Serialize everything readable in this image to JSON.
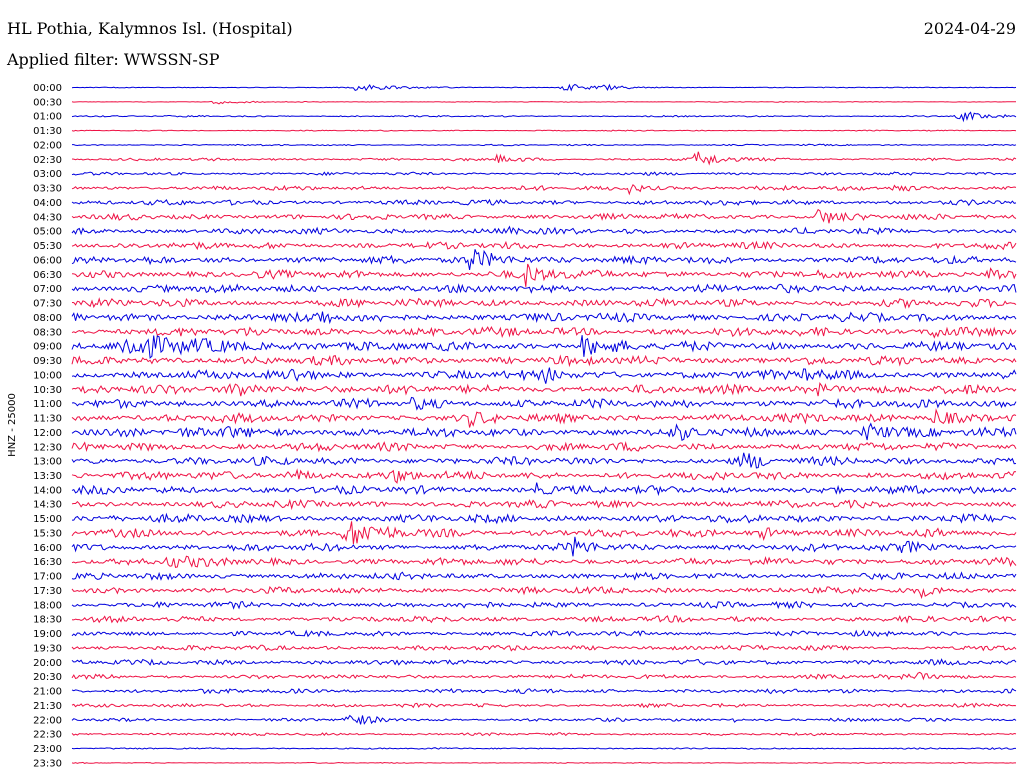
{
  "header": {
    "station": "HL Pothia, Kalymnos Isl. (Hospital)",
    "date": "2024-04-29",
    "filter": "Applied filter: WWSSN-SP"
  },
  "chart_data": {
    "type": "line",
    "title": "HL Pothia, Kalymnos Isl. (Hospital)",
    "subtitle": "Applied filter: WWSSN-SP",
    "ylabel": "HNZ - 25000",
    "xlabel": "",
    "row_interval_minutes": 30,
    "row_labels": [
      "00:00",
      "00:30",
      "01:00",
      "01:30",
      "02:00",
      "02:30",
      "03:00",
      "03:30",
      "04:00",
      "04:30",
      "05:00",
      "05:30",
      "06:00",
      "06:30",
      "07:00",
      "07:30",
      "08:00",
      "08:30",
      "09:00",
      "09:30",
      "10:00",
      "10:30",
      "11:00",
      "11:30",
      "12:00",
      "12:30",
      "13:00",
      "13:30",
      "14:00",
      "14:30",
      "15:00",
      "15:30",
      "16:00",
      "16:30",
      "17:00",
      "17:30",
      "18:00",
      "18:30",
      "19:00",
      "19:30",
      "20:00",
      "20:30",
      "21:00",
      "21:30",
      "22:00",
      "22:30",
      "23:00",
      "23:30"
    ],
    "colors": [
      "#0000dd",
      "#ee1144"
    ],
    "noise_level": [
      0.06,
      0.05,
      0.1,
      0.07,
      0.1,
      0.18,
      0.2,
      0.3,
      0.35,
      0.4,
      0.4,
      0.45,
      0.5,
      0.55,
      0.55,
      0.55,
      0.6,
      0.6,
      0.6,
      0.6,
      0.6,
      0.6,
      0.6,
      0.6,
      0.6,
      0.55,
      0.55,
      0.55,
      0.55,
      0.5,
      0.55,
      0.55,
      0.5,
      0.5,
      0.45,
      0.45,
      0.4,
      0.4,
      0.35,
      0.35,
      0.35,
      0.3,
      0.3,
      0.25,
      0.22,
      0.18,
      0.1,
      0.06
    ],
    "events": [
      {
        "row": 0,
        "x": 0.3,
        "amp": 0.4,
        "width": 0.07
      },
      {
        "row": 0,
        "x": 0.52,
        "amp": 0.6,
        "width": 0.03
      },
      {
        "row": 0,
        "x": 0.56,
        "amp": 0.5,
        "width": 0.03
      },
      {
        "row": 1,
        "x": 0.15,
        "amp": 0.25,
        "width": 0.04
      },
      {
        "row": 2,
        "x": 0.94,
        "amp": 0.6,
        "width": 0.04
      },
      {
        "row": 5,
        "x": 0.66,
        "amp": 0.9,
        "width": 0.04
      },
      {
        "row": 5,
        "x": 0.45,
        "amp": 0.5,
        "width": 0.03
      },
      {
        "row": 7,
        "x": 0.59,
        "amp": 0.5,
        "width": 0.03
      },
      {
        "row": 7,
        "x": 0.87,
        "amp": 0.6,
        "width": 0.02
      },
      {
        "row": 9,
        "x": 0.79,
        "amp": 1.0,
        "width": 0.03
      },
      {
        "row": 10,
        "x": 0.46,
        "amp": 0.5,
        "width": 0.02
      },
      {
        "row": 12,
        "x": 0.42,
        "amp": 1.2,
        "width": 0.05
      },
      {
        "row": 13,
        "x": 0.48,
        "amp": 1.2,
        "width": 0.03
      },
      {
        "row": 13,
        "x": 0.97,
        "amp": 0.8,
        "width": 0.03
      },
      {
        "row": 16,
        "x": 0.26,
        "amp": 0.9,
        "width": 0.02
      },
      {
        "row": 17,
        "x": 0.91,
        "amp": 0.8,
        "width": 0.03
      },
      {
        "row": 18,
        "x": 0.06,
        "amp": 1.2,
        "width": 0.12
      },
      {
        "row": 18,
        "x": 0.54,
        "amp": 1.1,
        "width": 0.04
      },
      {
        "row": 20,
        "x": 0.23,
        "amp": 0.6,
        "width": 0.03
      },
      {
        "row": 20,
        "x": 0.5,
        "amp": 0.8,
        "width": 0.02
      },
      {
        "row": 20,
        "x": 0.77,
        "amp": 0.8,
        "width": 0.03
      },
      {
        "row": 21,
        "x": 0.17,
        "amp": 0.8,
        "width": 0.04
      },
      {
        "row": 21,
        "x": 0.78,
        "amp": 1.0,
        "width": 0.03
      },
      {
        "row": 22,
        "x": 0.36,
        "amp": 0.6,
        "width": 0.03
      },
      {
        "row": 22,
        "x": 0.98,
        "amp": 0.7,
        "width": 0.02
      },
      {
        "row": 23,
        "x": 0.42,
        "amp": 0.7,
        "width": 0.02
      },
      {
        "row": 23,
        "x": 0.91,
        "amp": 1.1,
        "width": 0.03
      },
      {
        "row": 24,
        "x": 0.16,
        "amp": 0.7,
        "width": 0.04
      },
      {
        "row": 24,
        "x": 0.64,
        "amp": 0.6,
        "width": 0.03
      },
      {
        "row": 24,
        "x": 0.84,
        "amp": 1.2,
        "width": 0.03
      },
      {
        "row": 26,
        "x": 0.71,
        "amp": 0.9,
        "width": 0.03
      },
      {
        "row": 27,
        "x": 0.23,
        "amp": 0.6,
        "width": 0.04
      },
      {
        "row": 27,
        "x": 0.34,
        "amp": 0.6,
        "width": 0.03
      },
      {
        "row": 28,
        "x": 0.49,
        "amp": 0.8,
        "width": 0.02
      },
      {
        "row": 31,
        "x": 0.29,
        "amp": 1.4,
        "width": 0.05
      },
      {
        "row": 31,
        "x": 0.73,
        "amp": 0.6,
        "width": 0.03
      },
      {
        "row": 32,
        "x": 0.53,
        "amp": 0.9,
        "width": 0.03
      },
      {
        "row": 32,
        "x": 0.88,
        "amp": 0.6,
        "width": 0.04
      },
      {
        "row": 33,
        "x": 0.1,
        "amp": 0.6,
        "width": 0.04
      },
      {
        "row": 35,
        "x": 0.9,
        "amp": 0.5,
        "width": 0.03
      },
      {
        "row": 41,
        "x": 0.89,
        "amp": 0.5,
        "width": 0.03
      },
      {
        "row": 44,
        "x": 0.29,
        "amp": 0.9,
        "width": 0.03
      },
      {
        "row": 44,
        "x": 0.7,
        "amp": 0.3,
        "width": 0.01
      }
    ]
  }
}
